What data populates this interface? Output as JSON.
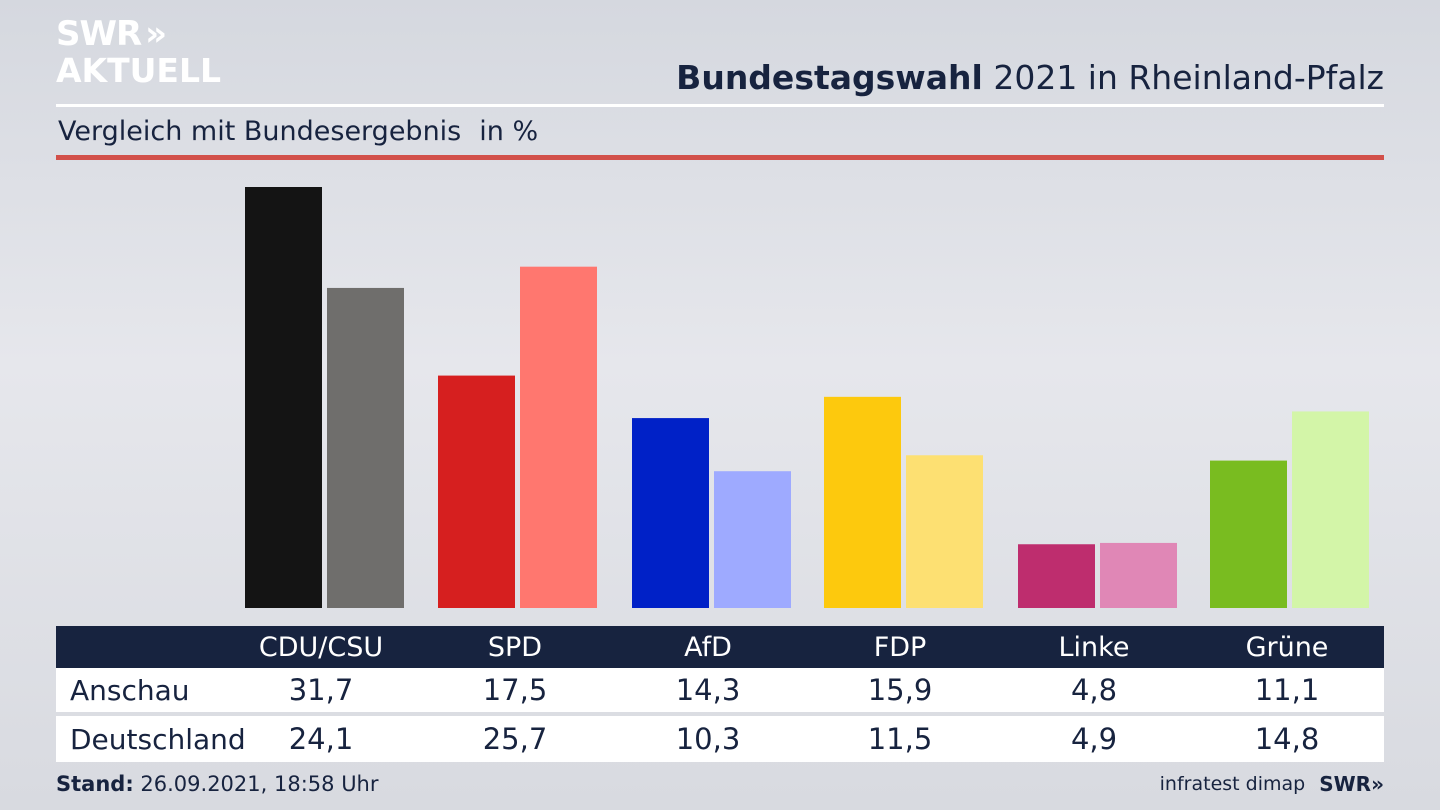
{
  "logo": {
    "line1": "SWR",
    "arrows": "»",
    "line2": "AKTUELL"
  },
  "title": {
    "bold": "Bundestagswahl",
    "rest": "2021 in Rheinland-Pfalz"
  },
  "subtitle": {
    "text": "Vergleich mit Bundesergebnis",
    "unit": "in %"
  },
  "chart_data": {
    "type": "bar",
    "categories": [
      "CDU/CSU",
      "SPD",
      "AfD",
      "FDP",
      "Linke",
      "Grüne"
    ],
    "series": [
      {
        "name": "Anschau",
        "values": [
          31.7,
          17.5,
          14.3,
          15.9,
          4.8,
          11.1
        ]
      },
      {
        "name": "Deutschland",
        "values": [
          24.1,
          25.7,
          10.3,
          11.5,
          4.9,
          14.8
        ]
      }
    ],
    "colors": [
      [
        "#141414",
        "#6f6e6c"
      ],
      [
        "#d61f1f",
        "#ff776f"
      ],
      [
        "#0021c7",
        "#9eaaff"
      ],
      [
        "#fdc90d",
        "#fde072"
      ],
      [
        "#be2d6e",
        "#e087b6"
      ],
      [
        "#79bc20",
        "#d3f5a8"
      ]
    ],
    "ylim": [
      0,
      31.7
    ],
    "grid": false,
    "legend": "table-below"
  },
  "table": {
    "headers": [
      "CDU/CSU",
      "SPD",
      "AfD",
      "FDP",
      "Linke",
      "Grüne"
    ],
    "rows": [
      {
        "label": "Anschau",
        "values": [
          "31,7",
          "17,5",
          "14,3",
          "15,9",
          "4,8",
          "11,1"
        ]
      },
      {
        "label": "Deutschland",
        "values": [
          "24,1",
          "25,7",
          "10,3",
          "11,5",
          "4,9",
          "14,8"
        ]
      }
    ]
  },
  "footer": {
    "stand_label": "Stand:",
    "stand_value": "26.09.2021, 18:58 Uhr",
    "source": "infratest dimap",
    "brand": "SWR»"
  }
}
